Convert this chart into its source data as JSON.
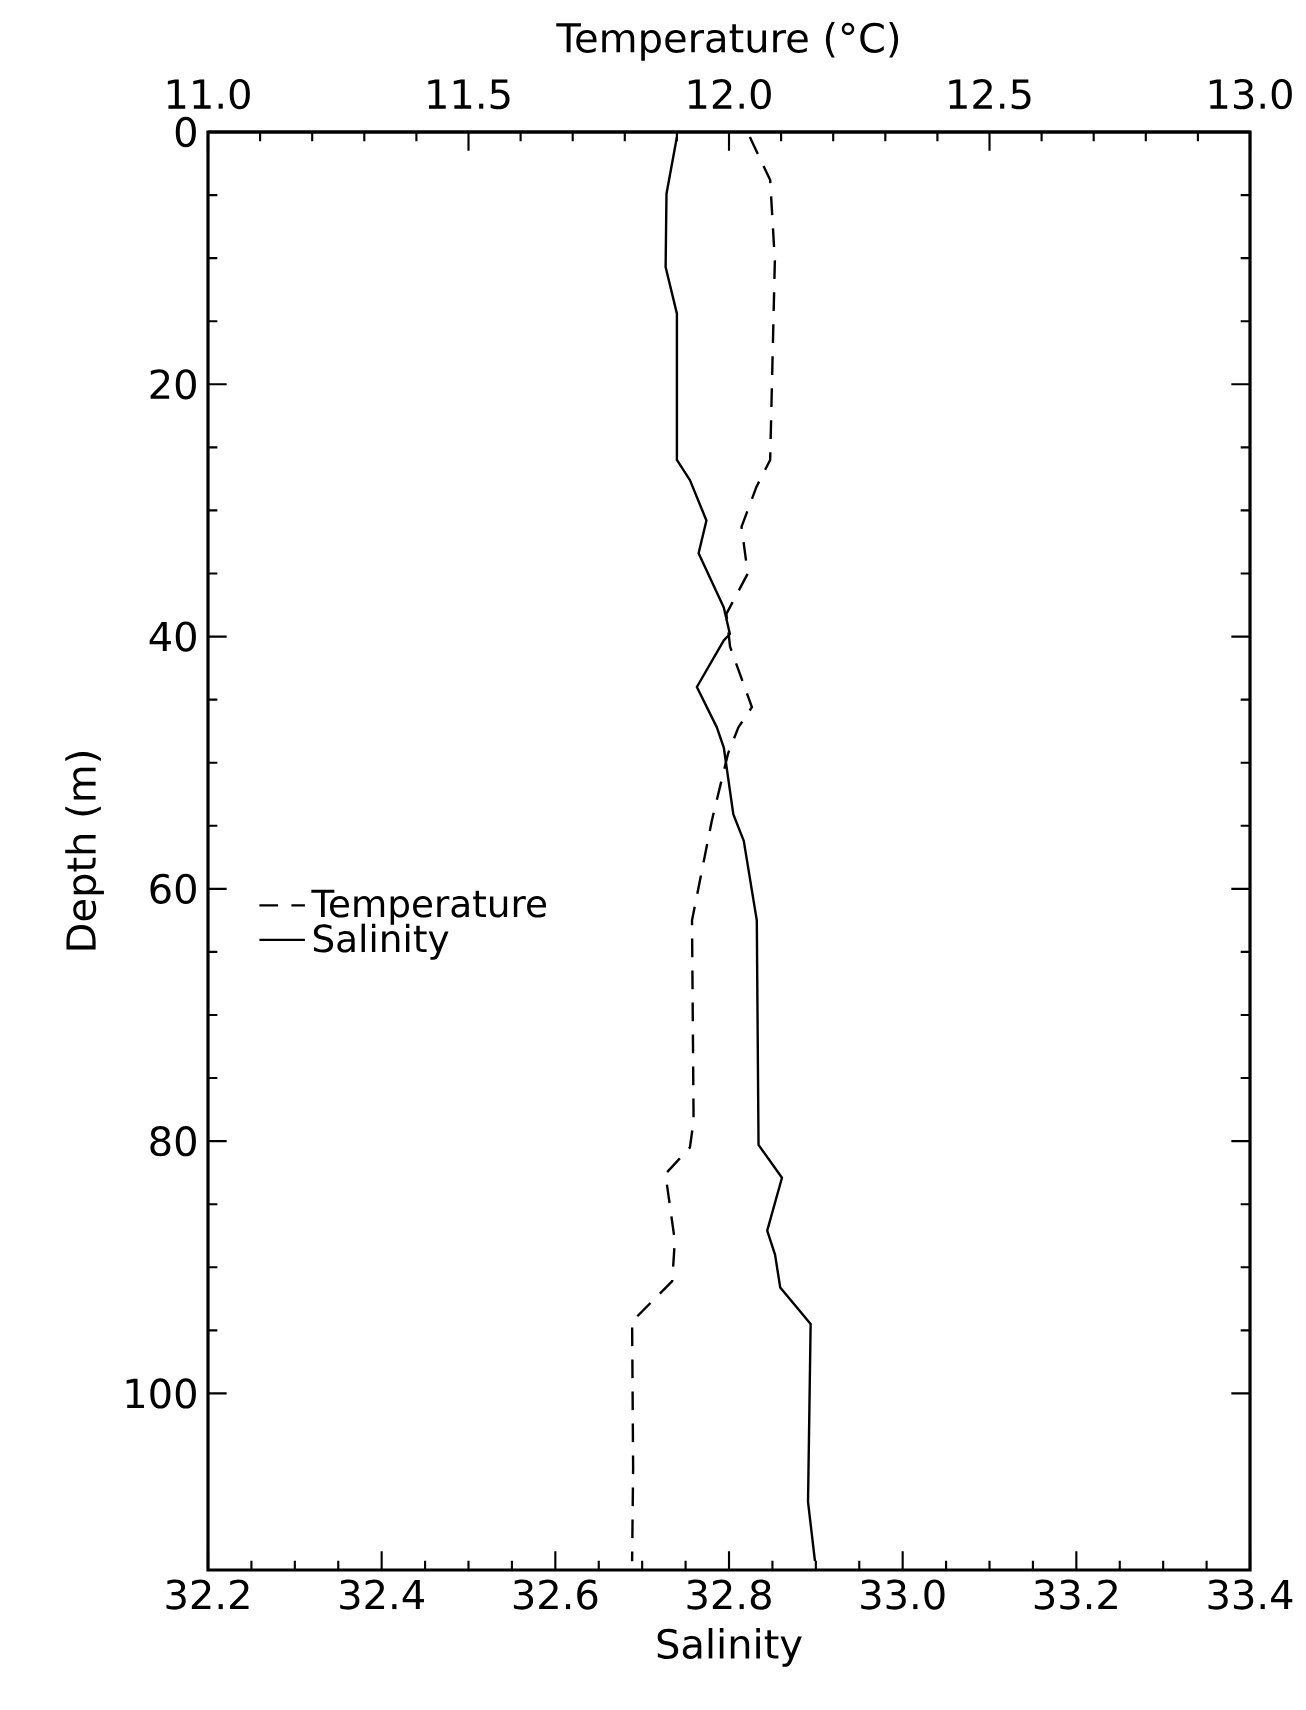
{
  "chart_data": {
    "type": "line",
    "xlabel": "Salinity",
    "x2label": "Temperature (°C)",
    "ylabel": "Depth (m)",
    "xlim": [
      32.2,
      33.4
    ],
    "xticks": [
      32.2,
      32.4,
      32.6,
      32.8,
      {
        "value": 33,
        "label": "33.0"
      },
      33.2,
      33.4
    ],
    "x2lim": [
      11,
      13
    ],
    "x2ticks": [
      {
        "value": 11,
        "label": "11.0"
      },
      11.5,
      {
        "value": 12,
        "label": "12.0"
      },
      12.5,
      {
        "value": 13,
        "label": "13.0"
      }
    ],
    "ylim": [
      114,
      0
    ],
    "yticks": [
      0,
      20,
      40,
      60,
      80,
      100
    ],
    "legend": "left",
    "series": [
      {
        "name": "Temperature",
        "color": "#000000",
        "axis": "x2",
        "line_style": "dashed",
        "x": [
          12.04,
          12.079,
          12.088,
          12.079,
          12.053,
          12.024,
          12.036,
          11.995,
          12.002,
          12.044,
          12.018,
          11.998,
          11.967,
          11.929,
          11.932,
          11.925,
          11.878,
          11.896,
          11.891,
          11.814,
          11.816,
          11.814
        ],
        "values": [
          0.4,
          3.8,
          10.2,
          26,
          28.1,
          31.3,
          35.0,
          38.2,
          40.8,
          45.6,
          47.2,
          49.3,
          54.6,
          62.5,
          78.4,
          80.5,
          82.6,
          87.9,
          91.1,
          94.3,
          105.9,
          113.3
        ]
      },
      {
        "name": "Salinity",
        "color": "#000000",
        "line_style": "solid",
        "x": [
          32.74,
          32.728,
          32.727,
          32.74,
          32.74,
          32.755,
          32.774,
          32.765,
          32.794,
          32.801,
          32.794,
          32.763,
          32.786,
          32.794,
          32.805,
          32.817,
          32.832,
          32.834,
          32.861,
          32.844,
          32.853,
          32.859,
          32.894,
          32.891,
          32.899
        ],
        "values": [
          0.4,
          4.9,
          10.7,
          14.4,
          26,
          27.6,
          30.8,
          33.4,
          37.7,
          39.8,
          40.3,
          44.0,
          47.2,
          48.8,
          54.1,
          56.2,
          62.5,
          80.3,
          82.9,
          87.1,
          89.0,
          91.6,
          94.5,
          108.6,
          113.3
        ]
      }
    ]
  }
}
